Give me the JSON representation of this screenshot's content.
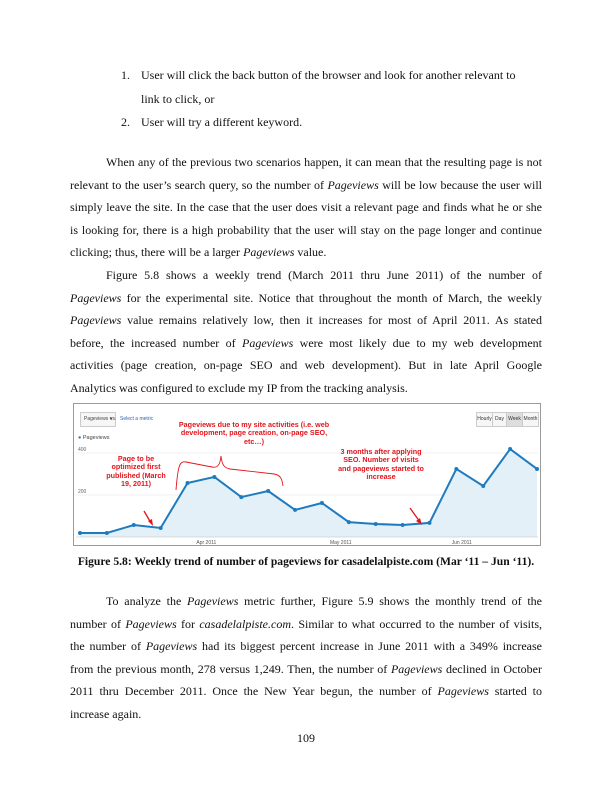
{
  "list": [
    {
      "num": "1.",
      "lines": [
        "User will click the back button of the browser and look for another relevant to",
        "link to click, or"
      ]
    },
    {
      "num": "2.",
      "lines": [
        "User will try a different keyword."
      ]
    }
  ],
  "para1": [
    [
      {
        "t": "When any of the previous two scenarios happen, it can mean that the resulting page is not"
      }
    ],
    [
      {
        "t": "relevant to the user’s search query, so the number of "
      },
      {
        "t": "Pageviews",
        "i": true
      },
      {
        "t": " will be low because the user will"
      }
    ],
    [
      {
        "t": "simply leave the site. In the case that the user does visit a relevant page and finds what he or she"
      }
    ],
    [
      {
        "t": "is looking for, there is a high probability that the user will stay on the page longer and continue"
      }
    ],
    [
      {
        "t": "clicking; thus, there will be a larger "
      },
      {
        "t": "Pageviews",
        "i": true
      },
      {
        "t": " value."
      }
    ]
  ],
  "para2": [
    [
      {
        "t": "Figure 5.8 shows a weekly trend (March 2011 thru June 2011) of the number of"
      }
    ],
    [
      {
        "t": "Pageviews",
        "i": true
      },
      {
        "t": " for the experimental site. Notice that throughout the month of March, the weekly"
      }
    ],
    [
      {
        "t": "Pageviews",
        "i": true
      },
      {
        "t": " value remains relatively low, then it increases for most of April 2011. As stated"
      }
    ],
    [
      {
        "t": "before, the increased number of "
      },
      {
        "t": "Pageviews",
        "i": true
      },
      {
        "t": " were most likely due to my web development"
      }
    ],
    [
      {
        "t": "activities (page creation, on-page SEO and web development). But in late April Google"
      }
    ],
    [
      {
        "t": "Analytics was configured to exclude my IP from the tracking analysis."
      }
    ]
  ],
  "figure": {
    "metric_select": "Pageviews ▾",
    "vs": "vs.",
    "select_metric": "Select a metric",
    "granularity": [
      "Hourly",
      "Day",
      "Week",
      "Month"
    ],
    "active_granularity": "Week",
    "legend": "Pageviews",
    "annotations": {
      "a1": "Pageviews due to my site activities (i.e. web development, page creation, on-page SEO, etc…)",
      "a2": "Page to be optimized first published (March 19, 2011)",
      "a3": "3 months after applying SEO. Number of visits and pageviews started to increase"
    },
    "colors": {
      "line": "#1f7bc0",
      "fill": "#e3f0f8",
      "annotation": "#e3141b"
    }
  },
  "chart_data": {
    "type": "area",
    "series": [
      {
        "name": "Pageviews",
        "values": [
          19,
          19,
          57,
          43,
          257,
          286,
          190,
          219,
          129,
          162,
          71,
          62,
          57,
          67,
          324,
          243,
          419,
          324
        ]
      }
    ],
    "y_ticks": [
      "400",
      "200"
    ],
    "y_tick_values": [
      400,
      200
    ],
    "x_ticks": [
      {
        "label": "Apr 2011",
        "at": 4.7
      },
      {
        "label": "May 2011",
        "at": 9.7
      },
      {
        "label": "Jun 2011",
        "at": 14.2
      }
    ],
    "ylim": [
      0,
      440
    ],
    "grid": true
  },
  "caption": "Figure 5.8: Weekly trend of number of pageviews for casadelalpiste.com (Mar ‘11 – Jun ‘11).",
  "para3": [
    [
      {
        "t": "To analyze the "
      },
      {
        "t": "Pageviews",
        "i": true
      },
      {
        "t": " metric further, Figure 5.9 shows the monthly trend of the"
      }
    ],
    [
      {
        "t": "number of "
      },
      {
        "t": "Pageviews",
        "i": true
      },
      {
        "t": " for "
      },
      {
        "t": "casadelalpiste.com",
        "i": true
      },
      {
        "t": ". Similar to what occurred to the number of visits,"
      }
    ],
    [
      {
        "t": "the number of "
      },
      {
        "t": "Pageviews",
        "i": true
      },
      {
        "t": " had its biggest percent increase in June 2011 with a 349% increase"
      }
    ],
    [
      {
        "t": "from the previous month, 278 versus 1,249. Then, the number of "
      },
      {
        "t": "Pageviews",
        "i": true
      },
      {
        "t": " declined in October"
      }
    ],
    [
      {
        "t": "2011 thru December 2011. Once the New Year begun, the number of "
      },
      {
        "t": "Pageviews",
        "i": true
      },
      {
        "t": " started to"
      }
    ],
    [
      {
        "t": "increase again."
      }
    ]
  ],
  "page_number": "109"
}
